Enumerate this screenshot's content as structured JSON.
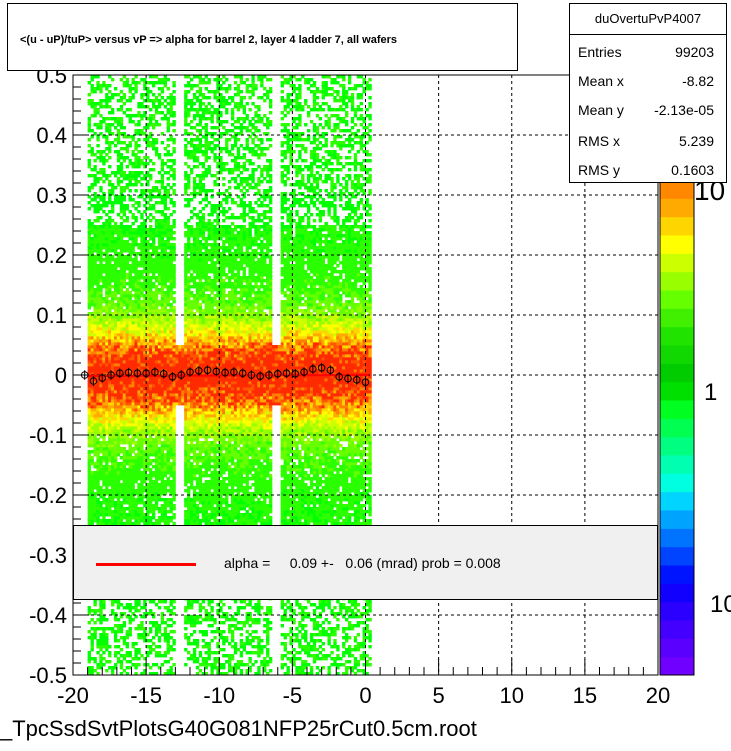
{
  "title": "<(u - uP)/tuP> versus   vP => alpha for barrel 2, layer 4 ladder 7, all wafers",
  "stats": {
    "name": "duOvertuPvP4007",
    "rows": [
      {
        "key": "Entries",
        "value": "99203"
      },
      {
        "key": "Mean x",
        "value": "-8.82"
      },
      {
        "key": "Mean y",
        "value": "-2.13e-05"
      },
      {
        "key": "RMS x",
        "value": "5.239"
      },
      {
        "key": "RMS y",
        "value": "0.1603"
      }
    ]
  },
  "fit": {
    "line_color": "#ff0000",
    "text": "alpha =     0.09 +-   0.06 (mrad) prob = 0.008"
  },
  "footer": "_TpcSsdSvtPlotsG40G081NFP25rCut0.5cm.root",
  "chart_data": {
    "type": "heatmap",
    "x_axis": {
      "range": [
        -20,
        20
      ],
      "ticks": [
        -20,
        -15,
        -10,
        -5,
        0,
        5,
        10,
        15,
        20
      ],
      "tick_labels": [
        "-20",
        "-15",
        "-10",
        "-5",
        "0",
        "5",
        "10",
        "15",
        "20"
      ]
    },
    "y_axis": {
      "range": [
        -0.5,
        0.5
      ],
      "ticks": [
        -0.5,
        -0.4,
        -0.3,
        -0.2,
        -0.1,
        0,
        0.1,
        0.2,
        0.3,
        0.4,
        0.5
      ],
      "tick_labels": [
        "-0.5",
        "-0.4",
        "-0.3",
        "-0.2",
        "-0.1",
        "0",
        "0.1",
        "0.2",
        "0.3",
        "0.4",
        "0.5"
      ]
    },
    "grid": true,
    "z_scale": "log",
    "palette_labels": [
      "10",
      "1",
      "10"
    ],
    "data_x_range": [
      -19,
      0.2
    ],
    "gaps_x": [
      -12.8,
      -6.2
    ],
    "profile_points": {
      "x": [
        -19.2,
        -18.6,
        -18.0,
        -17.4,
        -16.8,
        -16.2,
        -15.6,
        -15.0,
        -14.4,
        -13.8,
        -13.2,
        -12.6,
        -12.0,
        -11.4,
        -10.8,
        -10.2,
        -9.6,
        -9.0,
        -8.4,
        -7.8,
        -7.2,
        -6.6,
        -6.0,
        -5.4,
        -4.8,
        -4.2,
        -3.6,
        -3.0,
        -2.4,
        -1.8,
        -1.2,
        -0.6,
        0.0
      ],
      "y": [
        0.0,
        -0.01,
        -0.005,
        0.0,
        0.003,
        0.004,
        0.003,
        0.003,
        0.005,
        0.002,
        -0.003,
        0.0,
        0.005,
        0.007,
        0.008,
        0.006,
        0.004,
        0.005,
        0.003,
        0.0,
        -0.002,
        0.0,
        0.002,
        0.003,
        0.002,
        0.005,
        0.01,
        0.012,
        0.008,
        -0.003,
        -0.006,
        -0.008,
        -0.012
      ]
    },
    "fit_line": {
      "slope_mrad": 0.09
    }
  }
}
